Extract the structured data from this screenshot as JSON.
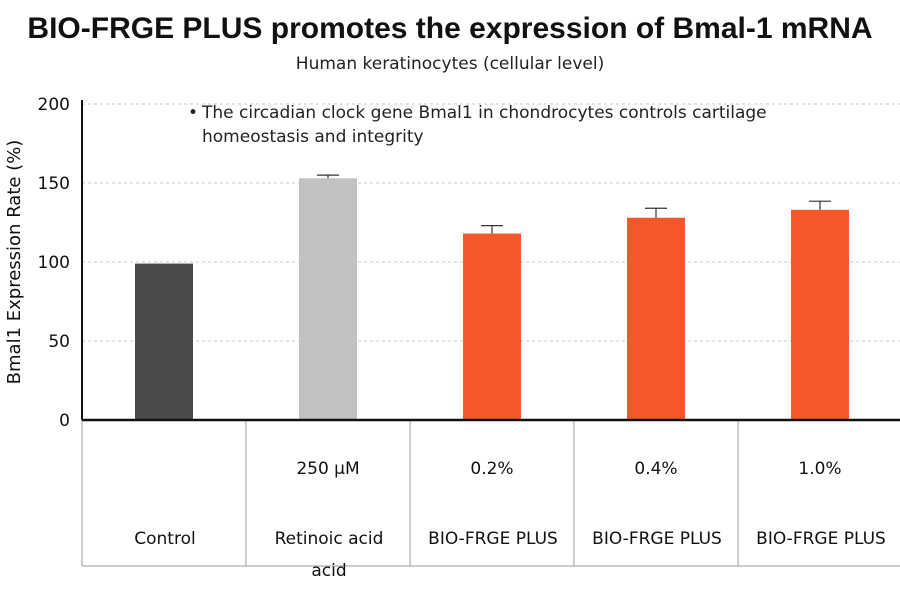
{
  "title": "BIO-FRGE PLUS promotes the expression of Bmal-1 mRNA",
  "subtitle": "Human keratinocytes (cellular level)",
  "note": {
    "bullet": "•",
    "text": "The circadian clock gene Bmal1 in chondrocytes controls cartilage homeostasis and integrity"
  },
  "colors": {
    "control": "#4a4a4a",
    "retinoic": "#c2c2c2",
    "bio_frge": "#f4572a",
    "grid": "#c8c8c8",
    "axis": "#111111"
  },
  "chart_data": {
    "type": "bar",
    "title": "BIO-FRGE PLUS promotes the expression of Bmal-1 mRNA",
    "subtitle": "Human keratinocytes (cellular level)",
    "ylabel": "Bmal1 Expression Rate (%)",
    "xlabel": "",
    "ylim": [
      0,
      200
    ],
    "yticks": [
      0,
      50,
      100,
      150,
      200
    ],
    "grid": true,
    "gridStyle": "dashed",
    "categories": [
      {
        "dose": "",
        "name": [
          "Control"
        ],
        "value": 99,
        "error": 0,
        "color": "#4a4a4a"
      },
      {
        "dose": "250 μM",
        "name": [
          "Retinoic acid",
          "acid"
        ],
        "value": 153,
        "error": 2,
        "color": "#c2c2c2"
      },
      {
        "dose": "0.2%",
        "name": [
          "BIO-FRGE PLUS"
        ],
        "value": 118,
        "error": 5,
        "color": "#f4572a"
      },
      {
        "dose": "0.4%",
        "name": [
          "BIO-FRGE PLUS"
        ],
        "value": 128,
        "error": 6,
        "color": "#f4572a"
      },
      {
        "dose": "1.0%",
        "name": [
          "BIO-FRGE PLUS"
        ],
        "value": 133,
        "error": 5.5,
        "color": "#f4572a"
      }
    ]
  }
}
